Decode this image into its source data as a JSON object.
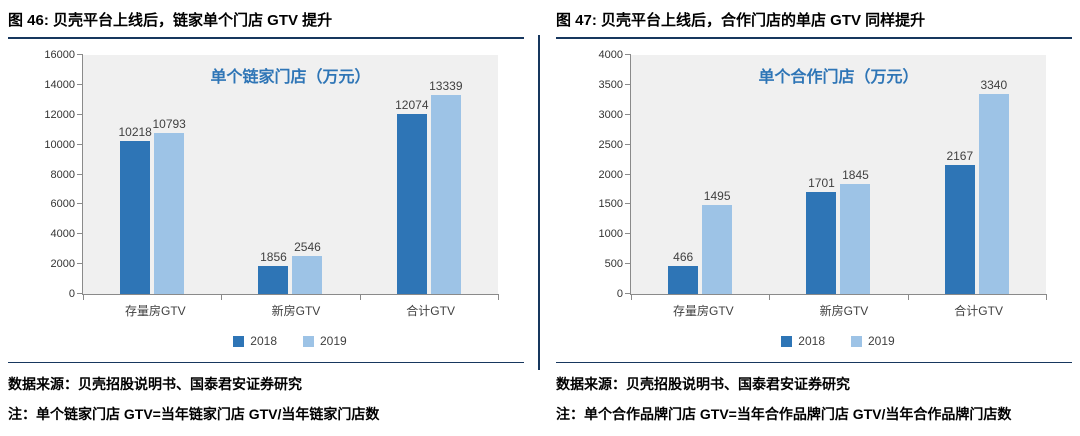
{
  "colors": {
    "navy_rule": "#17375E",
    "bar_2018": "#2E75B6",
    "bar_2019": "#9DC3E6",
    "chart_title_blue": "#2E75B6",
    "plot_background": "#F0F0F0"
  },
  "panels": [
    {
      "header": "图 46:  贝壳平台上线后，链家单个门店 GTV 提升",
      "source": "数据来源：贝壳招股说明书、国泰君安证券研究",
      "note": "注：单个链家门店 GTV=当年链家门店 GTV/当年链家门店数"
    },
    {
      "header": "图 47:  贝壳平台上线后，合作门店的单店 GTV 同样提升",
      "source": "数据来源：贝壳招股说明书、国泰君安证券研究",
      "note": "注：单个合作品牌门店 GTV=当年合作品牌门店 GTV/当年合作品牌门店数"
    }
  ],
  "chart_data": [
    {
      "type": "bar",
      "title": "单个链家门店（万元）",
      "categories": [
        "存量房GTV",
        "新房GTV",
        "合计GTV"
      ],
      "series": [
        {
          "name": "2018",
          "values": [
            10218,
            1856,
            12074
          ],
          "color": "#2E75B6"
        },
        {
          "name": "2019",
          "values": [
            10793,
            2546,
            13339
          ],
          "color": "#9DC3E6"
        }
      ],
      "xlabel": "",
      "ylabel": "",
      "ylim": [
        0,
        16000
      ],
      "ytick_step": 2000,
      "grid": false,
      "legend_position": "bottom"
    },
    {
      "type": "bar",
      "title": "单个合作门店（万元）",
      "categories": [
        "存量房GTV",
        "新房GTV",
        "合计GTV"
      ],
      "series": [
        {
          "name": "2018",
          "values": [
            466,
            1701,
            2167
          ],
          "color": "#2E75B6"
        },
        {
          "name": "2019",
          "values": [
            1495,
            1845,
            3340
          ],
          "color": "#9DC3E6"
        }
      ],
      "xlabel": "",
      "ylabel": "",
      "ylim": [
        0,
        4000
      ],
      "ytick_step": 500,
      "grid": false,
      "legend_position": "bottom"
    }
  ]
}
